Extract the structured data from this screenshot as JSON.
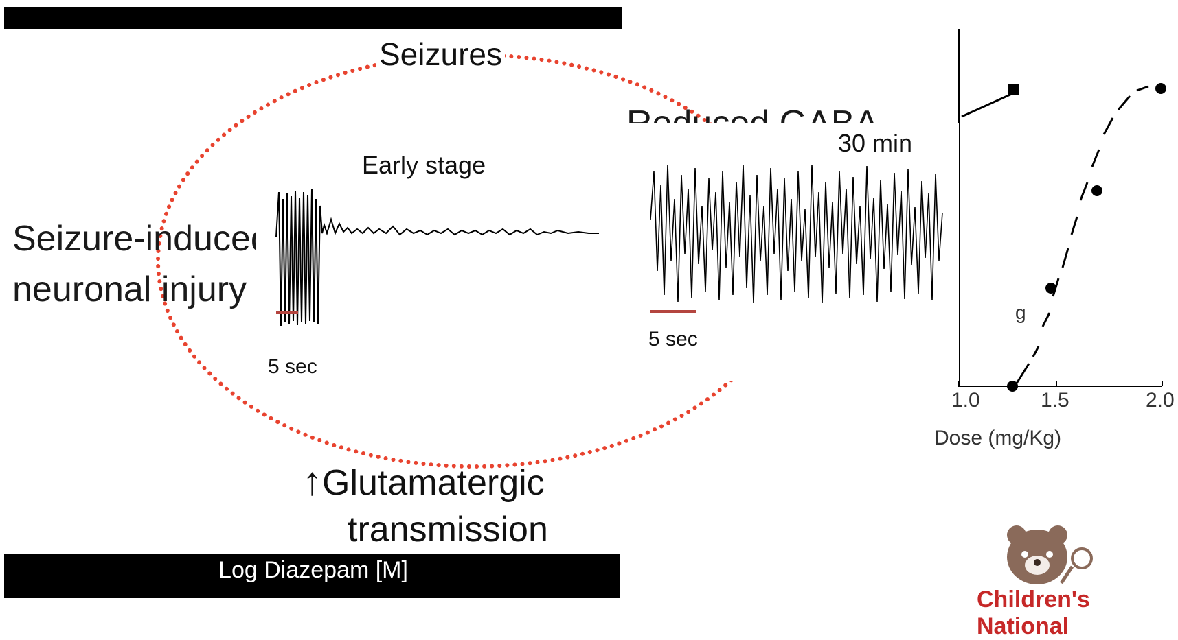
{
  "title": "",
  "cycle": {
    "seizures": "Seizures",
    "reduced_gaba": "Reduced GABA",
    "seizure_induced": "Seizure-induced",
    "neuronal_injury": "neuronal injury",
    "glutamatergic": "Glutamatergic",
    "transmission": "transmission"
  },
  "panel_left": {
    "title": "Early stage",
    "scale": "5 sec"
  },
  "panel_right": {
    "title": "30 min",
    "scale": "5 sec"
  },
  "background_axis": {
    "xlabel": "Log Diazepam [M]",
    "dose_label": "Dose (mg/Kg)",
    "ticks": [
      "1.0",
      "1.5",
      "2.0"
    ],
    "g": "g"
  },
  "logo": {
    "text": "Children's National"
  },
  "colors": {
    "dotted_ring": "#e8432f",
    "scale_bar": "#b4453f",
    "logo": "#c62828"
  }
}
